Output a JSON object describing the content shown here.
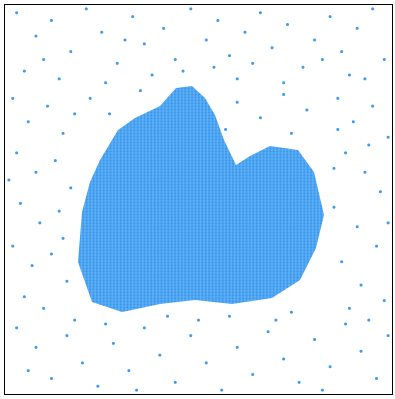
{
  "chart_data": {
    "type": "scatter",
    "color": "#3d9bf0",
    "xlim": [
      0,
      100
    ],
    "ylim": [
      0,
      100
    ],
    "x": [
      3,
      8,
      12,
      17,
      21,
      25,
      29,
      33,
      36,
      41,
      44,
      48,
      52,
      55,
      58,
      62,
      66,
      69,
      73,
      77,
      80,
      84,
      87,
      91,
      95,
      98,
      5,
      14,
      38,
      60,
      72,
      93,
      26,
      46,
      54,
      10,
      31,
      64,
      82,
      89,
      2,
      6,
      11,
      15,
      3,
      8,
      13,
      17,
      4,
      9,
      14,
      2,
      7,
      12,
      16,
      5,
      10,
      15,
      1,
      18,
      86,
      90,
      95,
      99,
      88,
      93,
      97,
      85,
      91,
      96,
      87,
      92,
      98,
      85,
      94,
      89,
      99,
      86,
      3,
      8,
      12,
      16,
      20,
      24,
      28,
      32,
      36,
      40,
      44,
      48,
      52,
      56,
      60,
      64,
      68,
      72,
      76,
      80,
      84,
      88,
      92,
      96,
      99,
      6,
      18,
      34,
      50,
      70,
      82,
      94,
      42,
      58,
      26,
      74,
      60,
      66,
      72,
      78,
      57,
      74,
      22,
      27,
      35
    ],
    "y": [
      98,
      92,
      96,
      88,
      99,
      93,
      85,
      97,
      90,
      94,
      86,
      99,
      91,
      96,
      87,
      93,
      98,
      89,
      95,
      84,
      91,
      97,
      88,
      94,
      99,
      86,
      83,
      81,
      82,
      81,
      80,
      81,
      80,
      83,
      84,
      86,
      91,
      85,
      86,
      82,
      76,
      70,
      74,
      67,
      62,
      57,
      60,
      53,
      49,
      44,
      47,
      38,
      33,
      36,
      29,
      25,
      22,
      40,
      55,
      72,
      76,
      70,
      74,
      66,
      62,
      57,
      52,
      48,
      43,
      38,
      34,
      28,
      24,
      58,
      64,
      22,
      44,
      68,
      17,
      12,
      4,
      15,
      8,
      2,
      13,
      6,
      17,
      10,
      3,
      15,
      8,
      1,
      12,
      5,
      16,
      9,
      3,
      14,
      7,
      18,
      11,
      4,
      15,
      6,
      19,
      1,
      19,
      19,
      1,
      19,
      20,
      20,
      18,
      21,
      75,
      71,
      77,
      73,
      68,
      67,
      76,
      72,
      78
    ]
  }
}
